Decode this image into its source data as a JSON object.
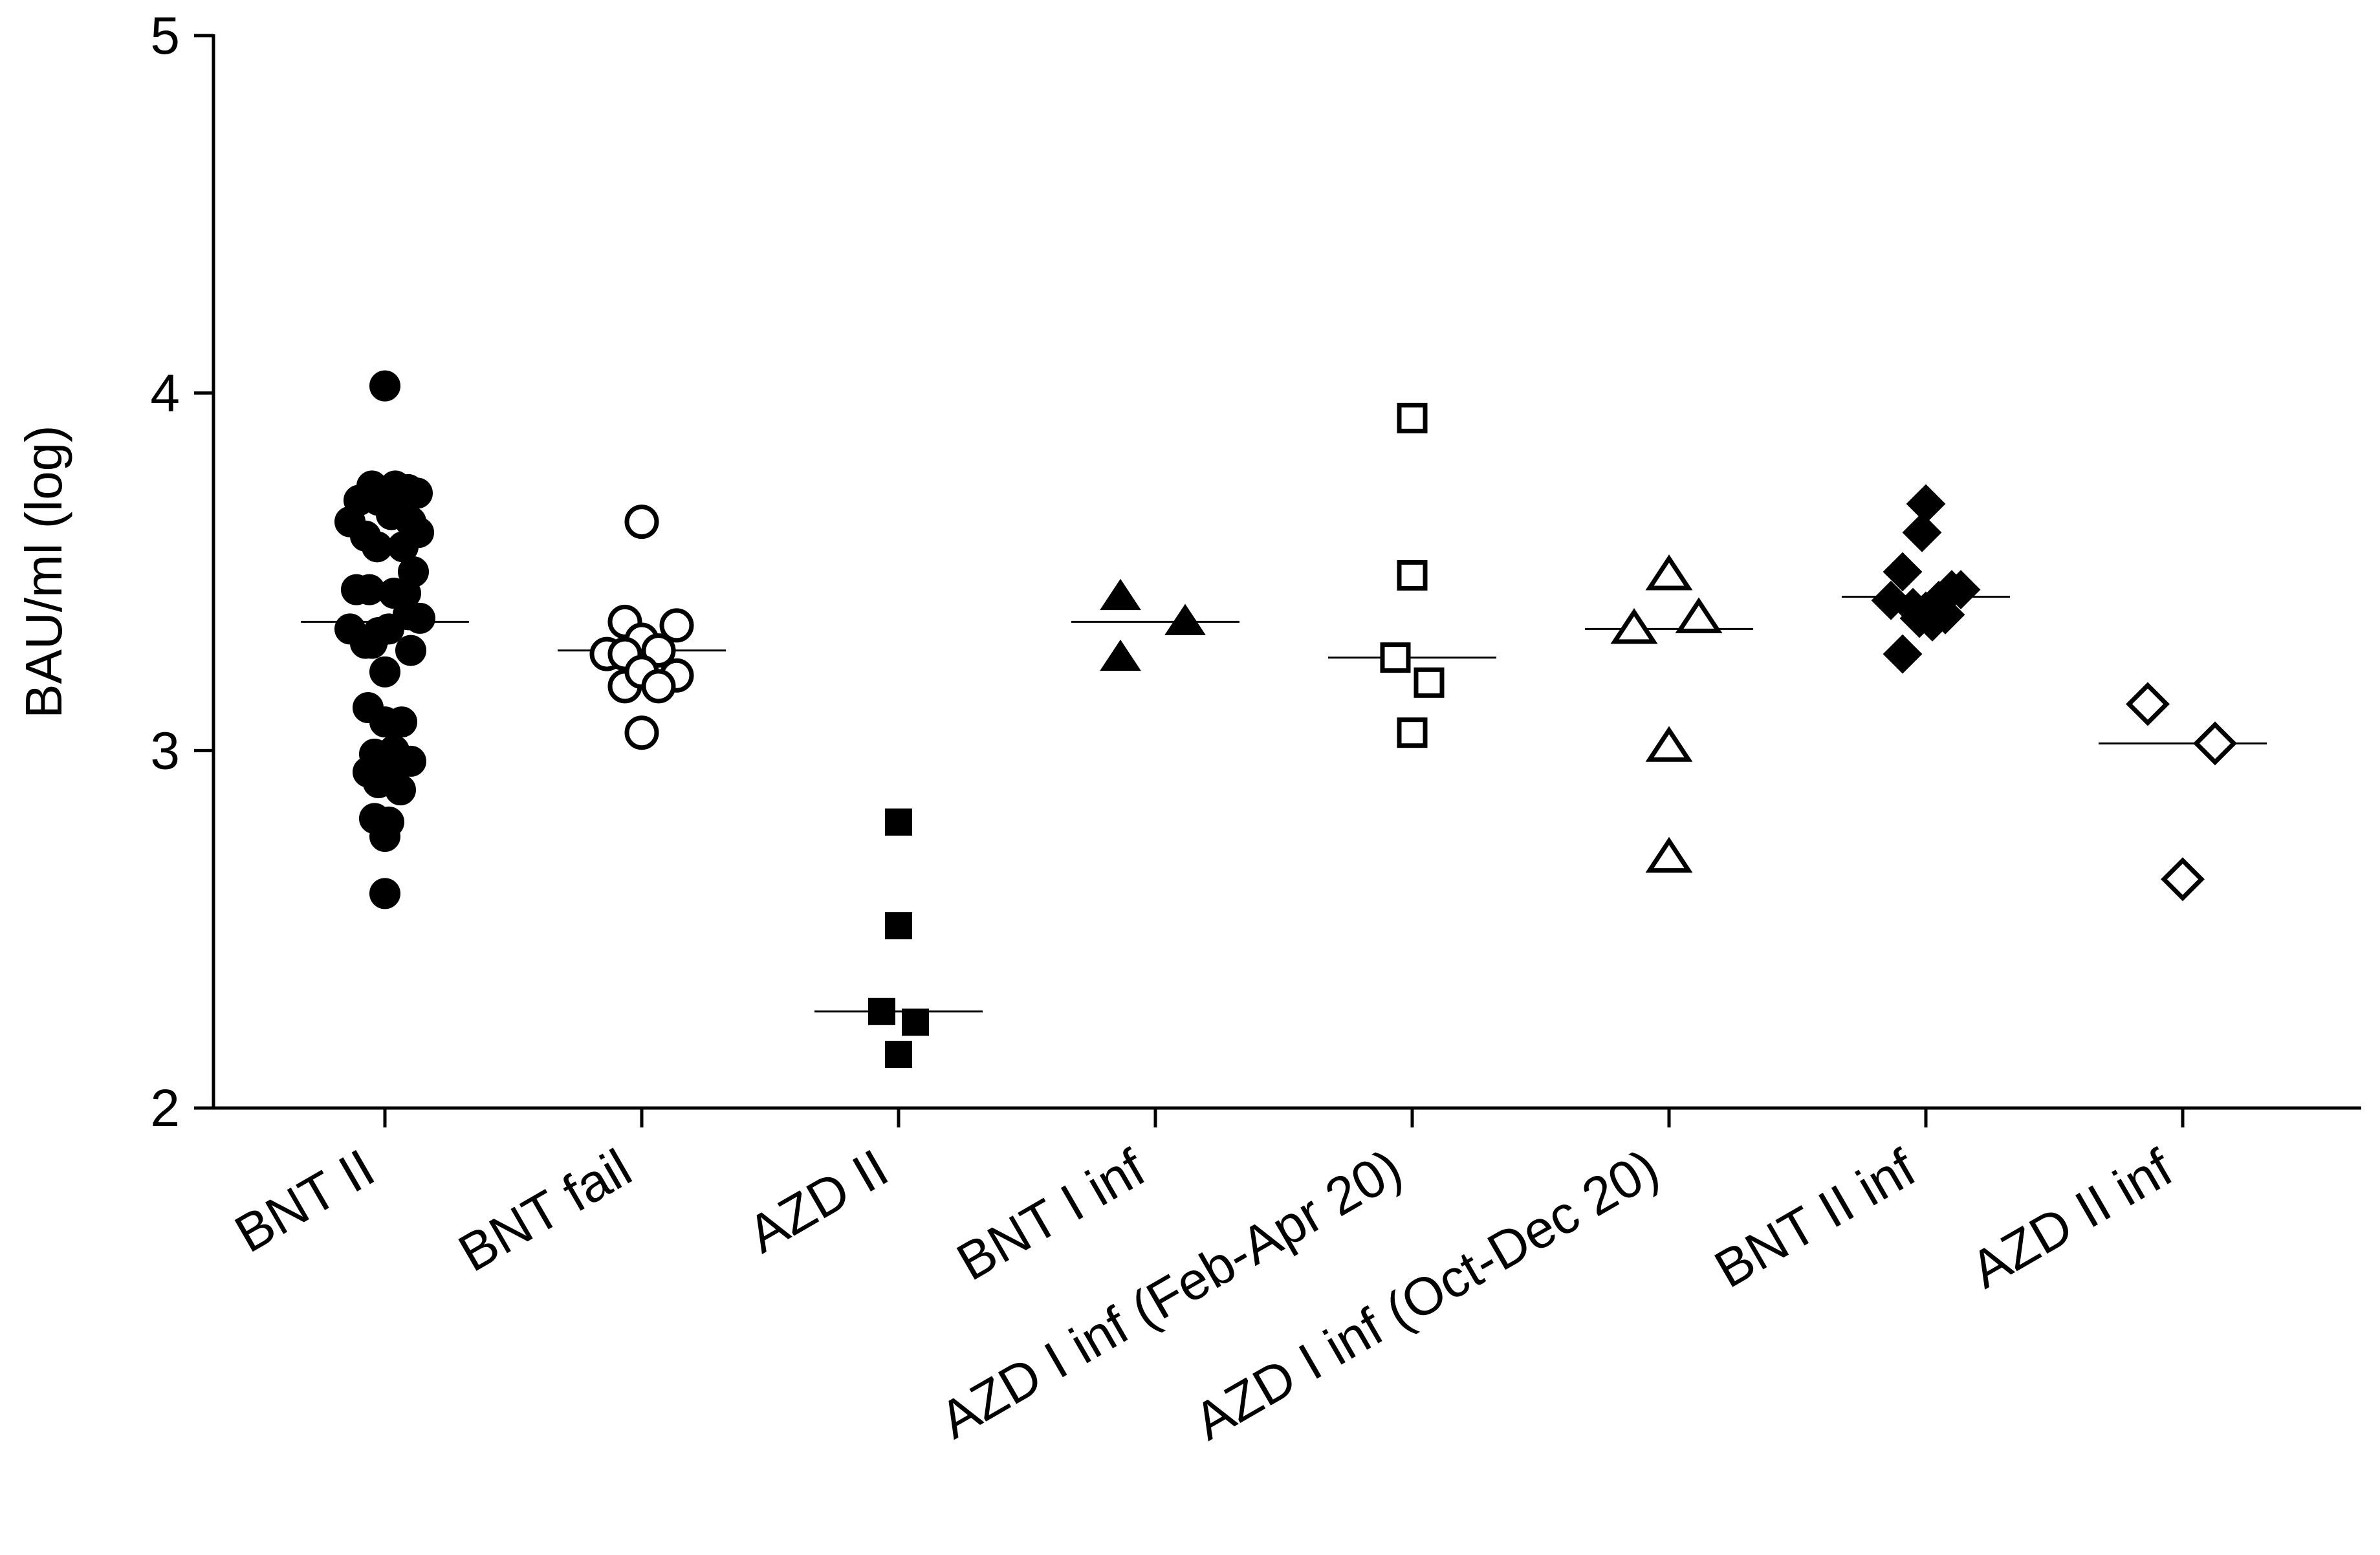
{
  "chart_data": {
    "type": "scatter",
    "title": "",
    "xlabel": "",
    "ylabel": "BAU/ml (log)",
    "ylim": [
      2,
      5
    ],
    "yticks": [
      "2",
      "3",
      "4",
      "5"
    ],
    "grid": false,
    "legend": "none",
    "categories": [
      "BNT II",
      "BNT fail",
      "AZD II",
      "BNT I inf",
      "AZD I inf (Feb-Apr 20)",
      "AZD I inf (Oct-Dec 20)",
      "BNT II inf",
      "AZD II inf"
    ],
    "groups": [
      {
        "category": "BNT II",
        "marker": "circle-filled",
        "median": 3.36,
        "points": [
          [
            0.0,
            4.02
          ],
          [
            -0.1,
            3.74
          ],
          [
            0.08,
            3.74
          ],
          [
            0.18,
            3.73
          ],
          [
            0.25,
            3.72
          ],
          [
            -0.2,
            3.7
          ],
          [
            -0.05,
            3.7
          ],
          [
            0.12,
            3.72
          ],
          [
            0.05,
            3.66
          ],
          [
            -0.27,
            3.64
          ],
          [
            0.2,
            3.64
          ],
          [
            -0.15,
            3.6
          ],
          [
            0.26,
            3.61
          ],
          [
            -0.06,
            3.57
          ],
          [
            0.14,
            3.57
          ],
          [
            0.22,
            3.5
          ],
          [
            -0.22,
            3.45
          ],
          [
            -0.12,
            3.45
          ],
          [
            0.07,
            3.44
          ],
          [
            0.16,
            3.44
          ],
          [
            -0.27,
            3.34
          ],
          [
            -0.15,
            3.3
          ],
          [
            -0.05,
            3.33
          ],
          [
            0.03,
            3.34
          ],
          [
            0.18,
            3.38
          ],
          [
            0.27,
            3.37
          ],
          [
            0.2,
            3.28
          ],
          [
            -0.1,
            3.3
          ],
          [
            0.0,
            3.22
          ],
          [
            -0.13,
            3.12
          ],
          [
            0.0,
            3.08
          ],
          [
            0.13,
            3.08
          ],
          [
            -0.08,
            2.99
          ],
          [
            0.07,
            3.0
          ],
          [
            0.2,
            2.97
          ],
          [
            -0.13,
            2.94
          ],
          [
            0.04,
            2.93
          ],
          [
            -0.05,
            2.91
          ],
          [
            0.12,
            2.89
          ],
          [
            -0.08,
            2.81
          ],
          [
            0.03,
            2.8
          ],
          [
            0.0,
            2.76
          ],
          [
            0.0,
            2.6
          ]
        ]
      },
      {
        "category": "BNT fail",
        "marker": "circle-open",
        "median": 3.28,
        "points": [
          [
            0.0,
            3.64
          ],
          [
            -0.13,
            3.36
          ],
          [
            0.27,
            3.35
          ],
          [
            0.0,
            3.31
          ],
          [
            -0.27,
            3.27
          ],
          [
            -0.13,
            3.27
          ],
          [
            0.13,
            3.28
          ],
          [
            0.27,
            3.21
          ],
          [
            -0.13,
            3.18
          ],
          [
            0.0,
            3.22
          ],
          [
            0.13,
            3.18
          ],
          [
            0.0,
            3.05
          ]
        ]
      },
      {
        "category": "AZD II",
        "marker": "square-filled",
        "median": 2.27,
        "points": [
          [
            0.0,
            2.8
          ],
          [
            0.0,
            2.51
          ],
          [
            -0.13,
            2.27
          ],
          [
            0.13,
            2.24
          ],
          [
            0.0,
            2.15
          ]
        ]
      },
      {
        "category": "BNT I inf",
        "marker": "triangle-filled",
        "median": 3.36,
        "points": [
          [
            -0.27,
            3.43
          ],
          [
            0.23,
            3.36
          ],
          [
            -0.27,
            3.26
          ]
        ]
      },
      {
        "category": "AZD I inf (Feb-Apr 20)",
        "marker": "square-open",
        "median": 3.26,
        "points": [
          [
            0.0,
            3.93
          ],
          [
            0.0,
            3.49
          ],
          [
            -0.13,
            3.26
          ],
          [
            0.13,
            3.19
          ],
          [
            0.0,
            3.05
          ]
        ]
      },
      {
        "category": "AZD I inf (Oct-Dec 20)",
        "marker": "triangle-open",
        "median": 3.34,
        "points": [
          [
            0.0,
            3.49
          ],
          [
            0.23,
            3.37
          ],
          [
            -0.27,
            3.34
          ],
          [
            0.0,
            3.01
          ],
          [
            0.0,
            2.7
          ]
        ]
      },
      {
        "category": "BNT II inf",
        "marker": "diamond-filled",
        "median": 3.43,
        "points": [
          [
            0.0,
            3.69
          ],
          [
            -0.03,
            3.61
          ],
          [
            -0.18,
            3.5
          ],
          [
            0.2,
            3.45
          ],
          [
            0.1,
            3.42
          ],
          [
            -0.27,
            3.42
          ],
          [
            0.27,
            3.45
          ],
          [
            -0.1,
            3.4
          ],
          [
            0.0,
            3.39
          ],
          [
            0.15,
            3.38
          ],
          [
            0.05,
            3.36
          ],
          [
            -0.05,
            3.37
          ],
          [
            -0.18,
            3.27
          ]
        ]
      },
      {
        "category": "AZD II inf",
        "marker": "diamond-open",
        "median": 3.02,
        "points": [
          [
            -0.27,
            3.13
          ],
          [
            0.25,
            3.02
          ],
          [
            0.0,
            2.64
          ]
        ]
      }
    ]
  }
}
